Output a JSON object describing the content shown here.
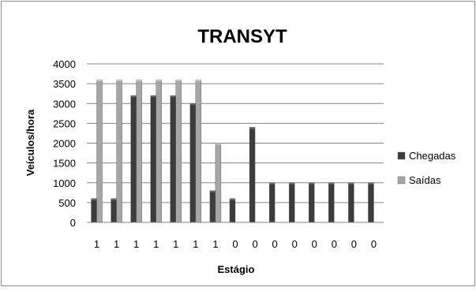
{
  "chart_data": {
    "type": "bar",
    "title": "TRANSYT",
    "xlabel": "Estágio",
    "ylabel": "Veículos/hora",
    "categories": [
      "1",
      "1",
      "1",
      "1",
      "1",
      "1",
      "1",
      "0",
      "0",
      "0",
      "0",
      "0",
      "0",
      "0",
      "0"
    ],
    "series": [
      {
        "name": "Chegadas",
        "values": [
          600,
          600,
          3200,
          3200,
          3200,
          3000,
          800,
          600,
          2400,
          1000,
          1000,
          1000,
          1000,
          1000,
          1000
        ],
        "color": "#3c3c3c"
      },
      {
        "name": "Saídas",
        "values": [
          3600,
          3600,
          3600,
          3600,
          3600,
          3600,
          2000,
          0,
          0,
          0,
          0,
          0,
          0,
          0,
          0
        ],
        "color": "#a6a6a6"
      }
    ],
    "ylim": [
      0,
      4000
    ],
    "yticks": [
      0,
      500,
      1000,
      1500,
      2000,
      2500,
      3000,
      3500,
      4000
    ],
    "grid": true,
    "legend_position": "right"
  }
}
